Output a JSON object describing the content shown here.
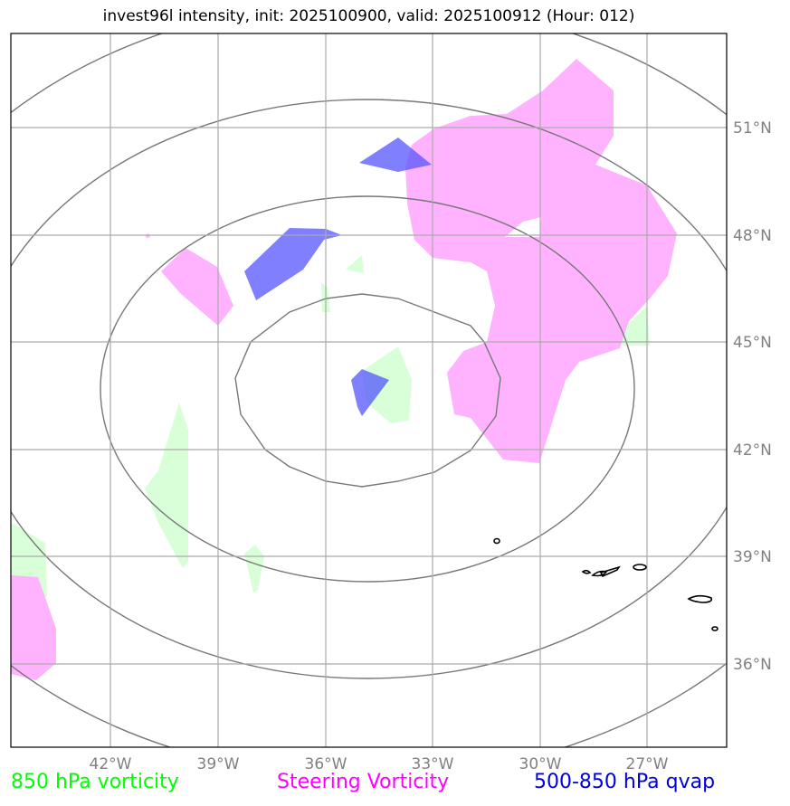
{
  "title": "invest96l intensity, init: 2025100900, valid: 2025100912 (Hour: 012)",
  "map": {
    "lon_labels": [
      "42°W",
      "39°W",
      "36°W",
      "33°W",
      "30°W",
      "27°W"
    ],
    "lat_labels": [
      "51°N",
      "48°N",
      "45°N",
      "42°N",
      "39°N",
      "36°N"
    ],
    "gridline_color": "#aaaaaa",
    "ring_color": "#777777"
  },
  "legend": [
    {
      "label": "850 hPa vorticity",
      "color": "#00ff00"
    },
    {
      "label": "Steering Vorticity",
      "color": "#ff00ff"
    },
    {
      "label": "500-850 hPa qvap",
      "color": "#0000dd"
    }
  ],
  "layers": {
    "vorticity_850_color": "#d8ffd8",
    "steering_vorticity_color": "#ffb3ff",
    "qvap_color": "#5555ff"
  }
}
